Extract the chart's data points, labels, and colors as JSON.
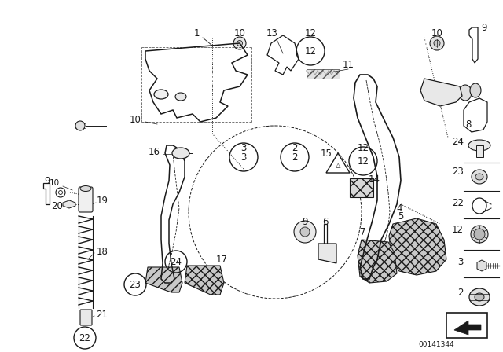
{
  "background_color": "#ffffff",
  "image_id": "00141344",
  "fig_width": 6.4,
  "fig_height": 4.48,
  "dpi": 100,
  "line_color": "#1a1a1a",
  "label_fontsize": 8.5,
  "small_fontsize": 7.5
}
